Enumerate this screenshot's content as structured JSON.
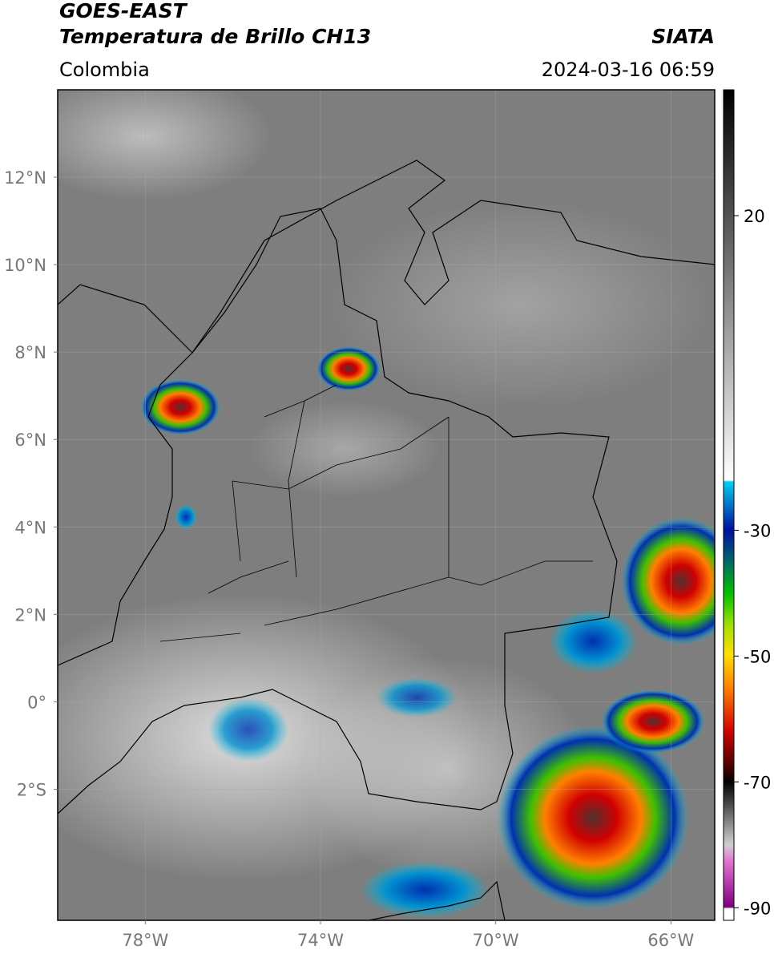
{
  "header": {
    "title": "GOES-EAST",
    "subtitle": "Temperatura de Brillo CH13",
    "source": "SIATA",
    "region": "Colombia",
    "datetime": "2024-03-16 06:59"
  },
  "map": {
    "xlim": [
      -80,
      -65
    ],
    "ylim": [
      -5,
      14
    ],
    "xticks": [
      {
        "value": -78,
        "label": "78°W"
      },
      {
        "value": -74,
        "label": "74°W"
      },
      {
        "value": -70,
        "label": "70°W"
      },
      {
        "value": -66,
        "label": "66°W"
      }
    ],
    "yticks": [
      {
        "value": 12,
        "label": "12°N"
      },
      {
        "value": 10,
        "label": "10°N"
      },
      {
        "value": 8,
        "label": "8°N"
      },
      {
        "value": 6,
        "label": "6°N"
      },
      {
        "value": 4,
        "label": "4°N"
      },
      {
        "value": 2,
        "label": "2°N"
      },
      {
        "value": 0,
        "label": "0°"
      },
      {
        "value": -2,
        "label": "2°S"
      }
    ]
  },
  "colorbar": {
    "range": [
      -92,
      40
    ],
    "ticks": [
      20,
      -30,
      -50,
      -70,
      -90
    ]
  }
}
